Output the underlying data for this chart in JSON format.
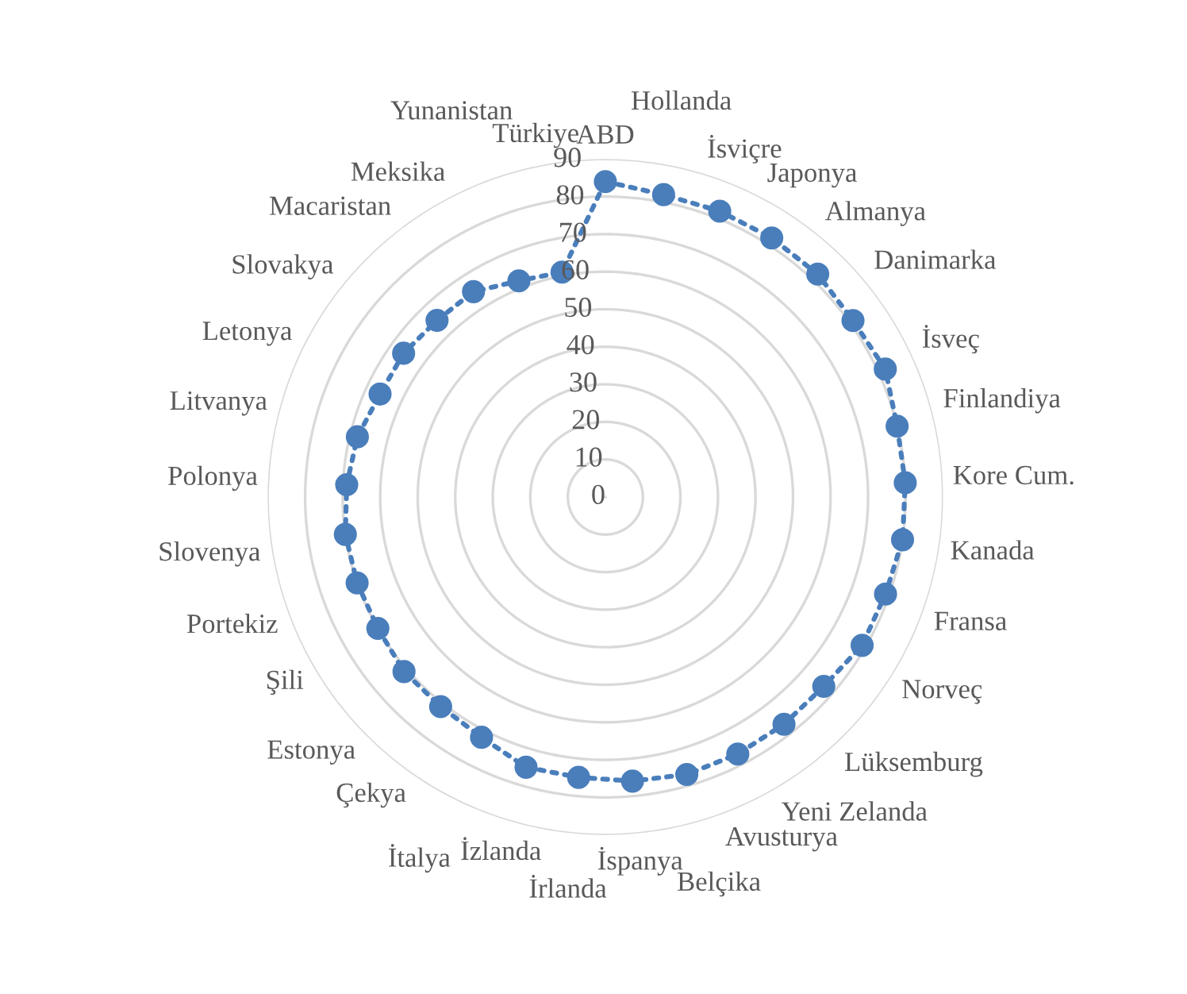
{
  "chart_data": {
    "type": "radar",
    "categories": [
      "ABD",
      "Hollanda",
      "İsviçre",
      "Japonya",
      "Almanya",
      "Danimarka",
      "İsveç",
      "Finlandiya",
      "Kore Cum.",
      "Kanada",
      "Fransa",
      "Norveç",
      "Lüksemburg",
      "Yeni Zelanda",
      "Avusturya",
      "Belçika",
      "İspanya",
      "İrlanda",
      "İzlanda",
      "İtalya",
      "Çekya",
      "Estonya",
      "Şili",
      "Portekiz",
      "Slovenya",
      "Polonya",
      "Litvanya",
      "Letonya",
      "Slovakya",
      "Macaristan",
      "Meksika",
      "Yunanistan",
      "Türkiye"
    ],
    "series": [
      {
        "color": "#4a7ebb",
        "values": [
          84,
          82,
          82,
          82,
          82,
          81,
          82,
          80,
          80,
          80,
          79,
          79,
          77,
          77,
          77,
          77,
          76,
          75,
          75,
          72,
          71,
          71,
          70,
          70,
          70,
          69,
          68,
          66,
          66,
          65,
          65,
          62,
          61
        ]
      }
    ],
    "ylim": [
      0,
      90
    ],
    "yticks": [
      0,
      10,
      20,
      30,
      40,
      50,
      60,
      70,
      80,
      90
    ],
    "grid": true,
    "marker": "circle",
    "line_style": "dotted"
  }
}
